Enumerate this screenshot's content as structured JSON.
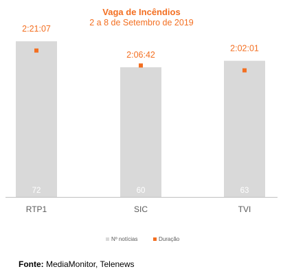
{
  "colors": {
    "bar": "#d9d9d9",
    "marker": "#f36f21",
    "title": "#f36f21",
    "axis": "#bfbfbf",
    "category_text": "#595959",
    "value_text": "#ffffff",
    "legend_text": "#595959"
  },
  "footer": {
    "label": "Fonte:",
    "text": "MediaMonitor, Telenews"
  },
  "chart_data": {
    "type": "bar",
    "title": "Vaga de Incêndios",
    "subtitle": "2 a 8 de Setembro de 2019",
    "categories": [
      "RTP1",
      "SIC",
      "TVI"
    ],
    "series": [
      {
        "name": "Nº notícias",
        "kind": "bar",
        "values": [
          72,
          60,
          63
        ]
      },
      {
        "name": "Duração",
        "kind": "marker",
        "values": [
          "2:21:07",
          "2:06:42",
          "2:02:01"
        ],
        "seconds": [
          8467,
          7602,
          7321
        ]
      }
    ],
    "legend": {
      "placement": "bottom",
      "entries": [
        "Nº notícias",
        "Duração"
      ]
    },
    "grid": false,
    "ylim": [
      0,
      80
    ],
    "duration_ylim_seconds": [
      0,
      10000
    ]
  }
}
